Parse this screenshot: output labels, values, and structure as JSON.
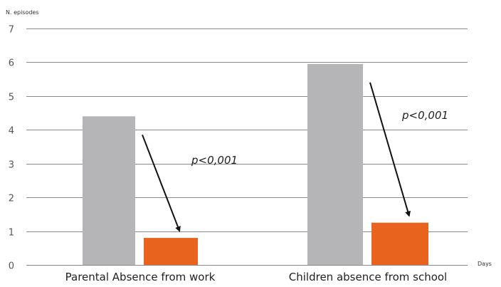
{
  "chart_data": {
    "type": "bar",
    "ylabel": "N. episodes",
    "xlabel": "Days",
    "categories": [
      "Parental Absence from work",
      "Children absence from school"
    ],
    "series": [
      {
        "values": [
          4.4,
          5.95
        ],
        "color": "#b5b5b7"
      },
      {
        "values": [
          0.8,
          1.25
        ],
        "color": "#e8641e"
      }
    ],
    "ylim": [
      0,
      7
    ],
    "yticks": [
      0,
      1,
      2,
      3,
      4,
      5,
      6,
      7
    ],
    "grid": true,
    "annotations": [
      {
        "text": "p<0,001",
        "category": 0
      },
      {
        "text": "p<0,001",
        "category": 1
      }
    ]
  }
}
